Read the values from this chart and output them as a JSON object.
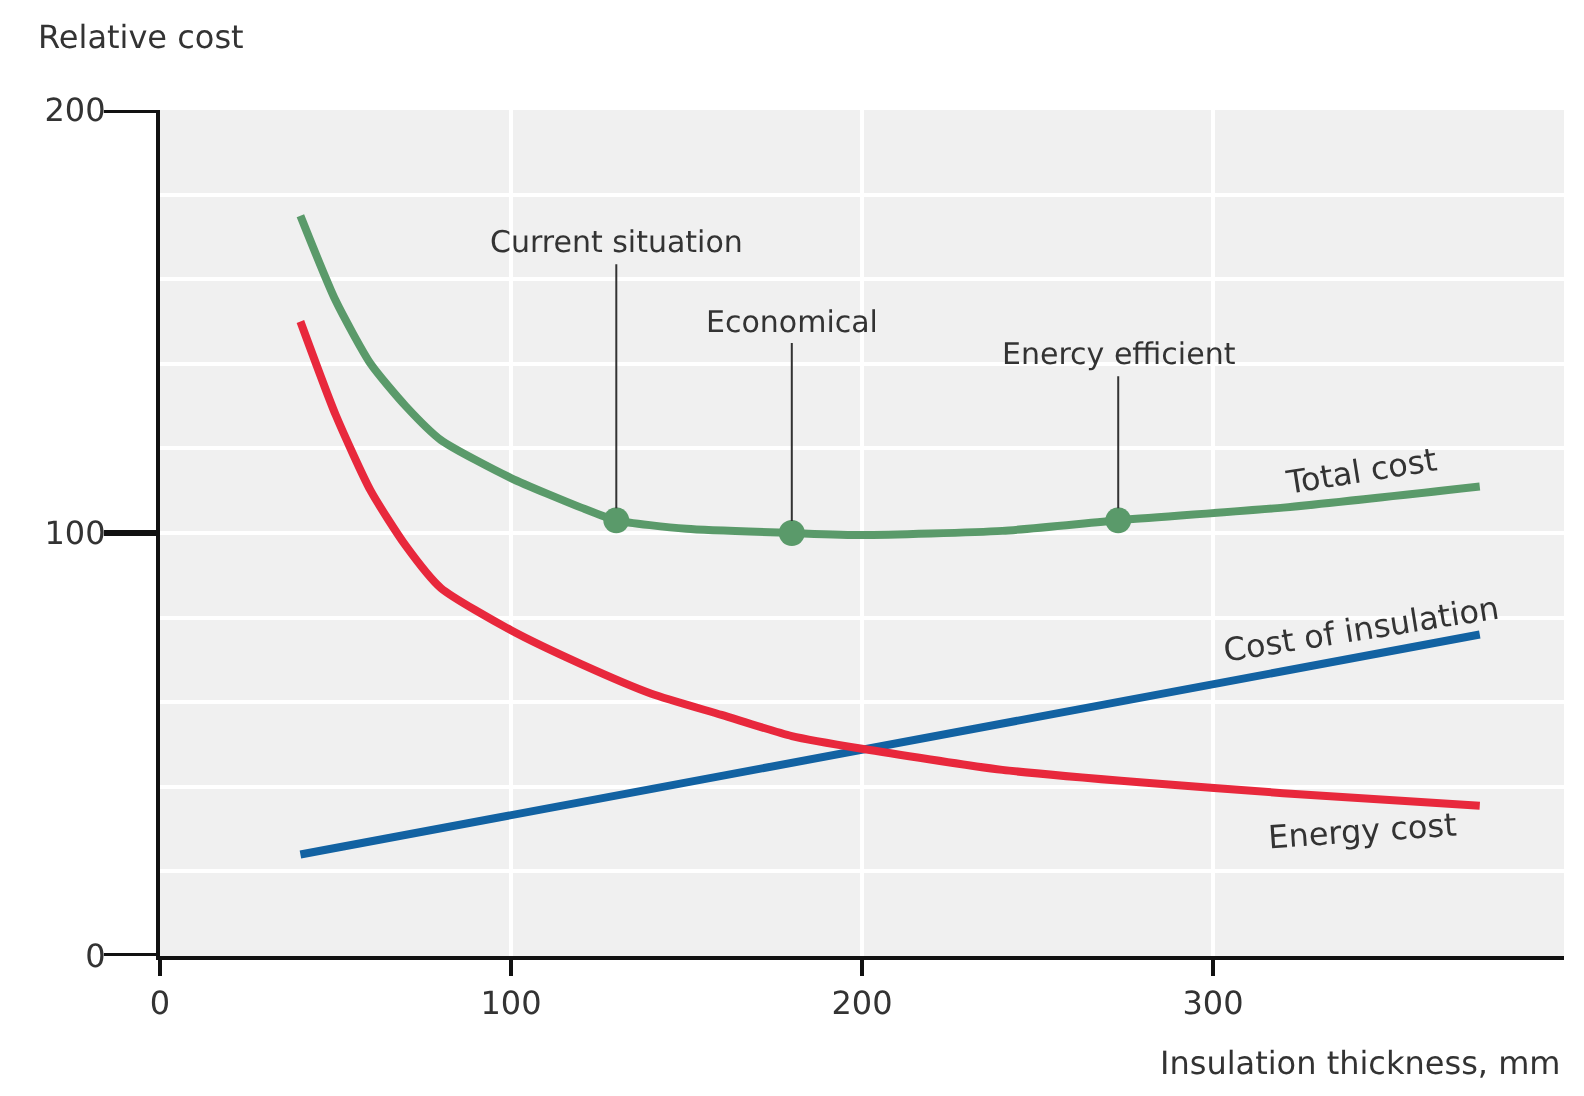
{
  "chart_data": {
    "type": "line",
    "xlabel": "Insulation thickness, mm",
    "ylabel": "Relative cost",
    "xlim": [
      0,
      400
    ],
    "xticks": [
      0,
      100,
      200,
      300
    ],
    "ylim": [
      0,
      200
    ],
    "yticks": [
      0,
      {
        "value": 20,
        "label": null
      },
      {
        "value": 40,
        "label": null
      },
      {
        "value": 60,
        "label": null
      },
      {
        "value": 80,
        "label": null
      },
      100,
      {
        "value": 120,
        "label": null
      },
      {
        "value": 140,
        "label": null
      },
      {
        "value": 160,
        "label": null
      },
      {
        "value": 180,
        "label": null
      },
      200
    ],
    "grid": true,
    "marker": "none",
    "line_style": "solid",
    "series": [
      {
        "name": "Total cost",
        "color": "#5a9a6a",
        "x": [
          40,
          50,
          60,
          70,
          80,
          100,
          120,
          130,
          150,
          180,
          200,
          240,
          273,
          320,
          376
        ],
        "values": [
          175,
          155,
          140,
          130,
          122,
          113,
          106,
          103,
          101,
          100,
          99.5,
          100.5,
          103,
          106,
          111
        ]
      },
      {
        "name": "Cost of insulation",
        "color": "#1262a2",
        "x": [
          40,
          376
        ],
        "values": [
          24,
          76
        ]
      },
      {
        "name": "Energy cost",
        "color": "#e8283c",
        "x": [
          40,
          50,
          60,
          70,
          80,
          100,
          120,
          140,
          160,
          180,
          200,
          240,
          280,
          320,
          376
        ],
        "values": [
          150,
          128,
          110,
          97,
          87,
          77,
          69,
          62,
          57,
          52,
          49,
          44,
          41,
          38.5,
          35.5
        ]
      },
      {
        "type": "scatter",
        "marker": "circle",
        "color": "#5a9a6a",
        "x": [
          130,
          180,
          273
        ],
        "values": [
          103,
          100,
          103
        ]
      }
    ],
    "annotations": [
      {
        "text": "Current situation",
        "x": 130,
        "y": 103
      },
      {
        "text": "Economical",
        "x": 180,
        "y": 100
      },
      {
        "text": "Enercy efficient",
        "x": 273,
        "y": 103
      }
    ]
  }
}
